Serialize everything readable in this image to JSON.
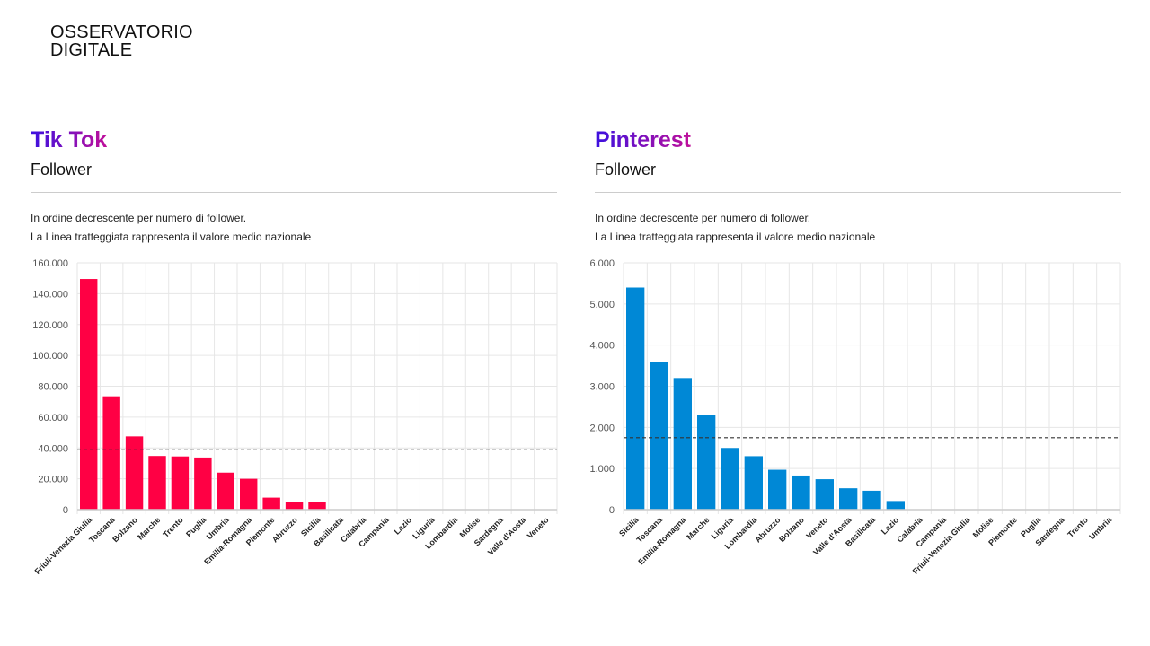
{
  "logo": {
    "line1": "OSSERVATORIO",
    "line2": "DIGITALE"
  },
  "panels": [
    {
      "title": "Tik Tok",
      "subtitle": "Follower",
      "note1": "In ordine decrescente per numero di follower.",
      "note2": "La Linea tratteggiata rappresenta il valore medio nazionale"
    },
    {
      "title": "Pinterest",
      "subtitle": "Follower",
      "note1": "In ordine decrescente per numero di follower.",
      "note2": "La Linea tratteggiata rappresenta il valore medio nazionale"
    }
  ],
  "chart_data": [
    {
      "type": "bar",
      "color": "#ff0044",
      "ylim": [
        0,
        160000
      ],
      "yticks": [
        "0",
        "20.000",
        "40.000",
        "60.000",
        "80.000",
        "100.000",
        "120.000",
        "140.000",
        "160.000"
      ],
      "ytick_values": [
        0,
        20000,
        40000,
        60000,
        80000,
        100000,
        120000,
        140000,
        160000
      ],
      "mean_line": 38800,
      "grid": true,
      "categories": [
        "Friuli-Venezia Giulia",
        "Toscana",
        "Bolzano",
        "Marche",
        "Trento",
        "Puglia",
        "Umbria",
        "Emilia-Romagna",
        "Piemonte",
        "Abruzzo",
        "Sicilia",
        "Basilicata",
        "Calabria",
        "Campania",
        "Lazio",
        "Liguria",
        "Lombardia",
        "Molise",
        "Sardegna",
        "Valle d'Aosta",
        "Veneto"
      ],
      "values": [
        149500,
        73500,
        47500,
        34800,
        34500,
        33800,
        24000,
        20000,
        7800,
        5000,
        5000,
        0,
        0,
        0,
        0,
        0,
        0,
        0,
        0,
        0,
        0
      ]
    },
    {
      "type": "bar",
      "color": "#0088d6",
      "ylim": [
        0,
        6000
      ],
      "yticks": [
        "0",
        "1.000",
        "2.000",
        "3.000",
        "4.000",
        "5.000",
        "6.000"
      ],
      "ytick_values": [
        0,
        1000,
        2000,
        3000,
        4000,
        5000,
        6000
      ],
      "mean_line": 1750,
      "grid": true,
      "categories": [
        "Sicilia",
        "Toscana",
        "Emilia-Romagna",
        "Marche",
        "Liguria",
        "Lombardia",
        "Abruzzo",
        "Bolzano",
        "Veneto",
        "Valle d'Aosta",
        "Basilicata",
        "Lazio",
        "Calabria",
        "Campania",
        "Friuli-Venezia Giulia",
        "Molise",
        "Piemonte",
        "Puglia",
        "Sardegna",
        "Trento",
        "Umbria"
      ],
      "values": [
        5400,
        3600,
        3200,
        2300,
        1500,
        1300,
        970,
        830,
        740,
        520,
        460,
        210,
        0,
        0,
        0,
        0,
        0,
        0,
        0,
        0,
        0
      ]
    }
  ]
}
